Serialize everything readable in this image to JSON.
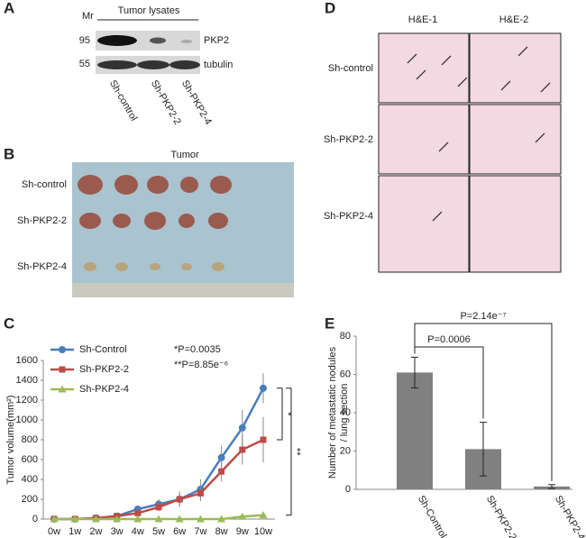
{
  "panels": {
    "A": {
      "letter": "A",
      "mr": "Mr",
      "markers": [
        "95",
        "55"
      ],
      "header": "Tumor lysates",
      "bands": [
        "PKP2",
        "tubulin"
      ],
      "lanes": [
        "Sh-control",
        "Sh-PKP2-2",
        "Sh-PKP2-4"
      ]
    },
    "B": {
      "letter": "B",
      "header": "Tumor",
      "rows": [
        "Sh-control",
        "Sh-PKP2-2",
        "Sh-PKP2-4"
      ]
    },
    "C": {
      "letter": "C"
    },
    "D": {
      "letter": "D",
      "columns": [
        "H&E-1",
        "H&E-2"
      ],
      "rows": [
        "Sh-control",
        "Sh-PKP2-2",
        "Sh-PKP2-4"
      ]
    },
    "E": {
      "letter": "E"
    }
  },
  "chart_data": [
    {
      "type": "line",
      "ylabel": "Tumor volume(mm²)",
      "categories": [
        "0w",
        "1w",
        "2w",
        "3w",
        "4w",
        "5w",
        "6w",
        "7w",
        "8w",
        "9w",
        "10w"
      ],
      "series": [
        {
          "name": "Sh-Control",
          "color": "#4a7ebb",
          "marker": "circle",
          "values": [
            0,
            0,
            10,
            30,
            100,
            150,
            200,
            300,
            620,
            920,
            1320
          ],
          "errors": [
            0,
            0,
            5,
            10,
            20,
            50,
            80,
            100,
            120,
            180,
            150
          ]
        },
        {
          "name": "Sh-PKP2-2",
          "color": "#be4b48",
          "marker": "square",
          "values": [
            0,
            0,
            10,
            30,
            60,
            120,
            200,
            260,
            480,
            700,
            800
          ],
          "errors": [
            0,
            0,
            5,
            10,
            20,
            40,
            60,
            80,
            100,
            150,
            230
          ]
        },
        {
          "name": "Sh-PKP2-4",
          "color": "#9bbb59",
          "marker": "triangle",
          "values": [
            0,
            0,
            0,
            0,
            0,
            0,
            0,
            0,
            0,
            25,
            40
          ],
          "errors": [
            0,
            0,
            0,
            0,
            0,
            0,
            0,
            0,
            0,
            15,
            15
          ]
        }
      ],
      "ylim": [
        0,
        1600
      ],
      "yticks": [
        0,
        200,
        400,
        600,
        800,
        1000,
        1200,
        1400,
        1600
      ],
      "legend": "top-left",
      "annotations": [
        "*P=0.0035",
        "**P=8.85e⁻⁶"
      ],
      "brackets": [
        "*",
        "**"
      ]
    },
    {
      "type": "bar",
      "ylabel": [
        "Number of metastatic nodules",
        "/ lung section"
      ],
      "categories": [
        "Sh-Control",
        "Sh-PKP2-2",
        "Sh-PKP2-4"
      ],
      "values": [
        61,
        21,
        1.5
      ],
      "errors": [
        8,
        14,
        1
      ],
      "color": "#808080",
      "ylim": [
        0,
        80
      ],
      "yticks": [
        0,
        20,
        40,
        60,
        80
      ],
      "annotations": [
        "P=0.0006",
        "P=2.14e⁻⁷"
      ]
    }
  ]
}
